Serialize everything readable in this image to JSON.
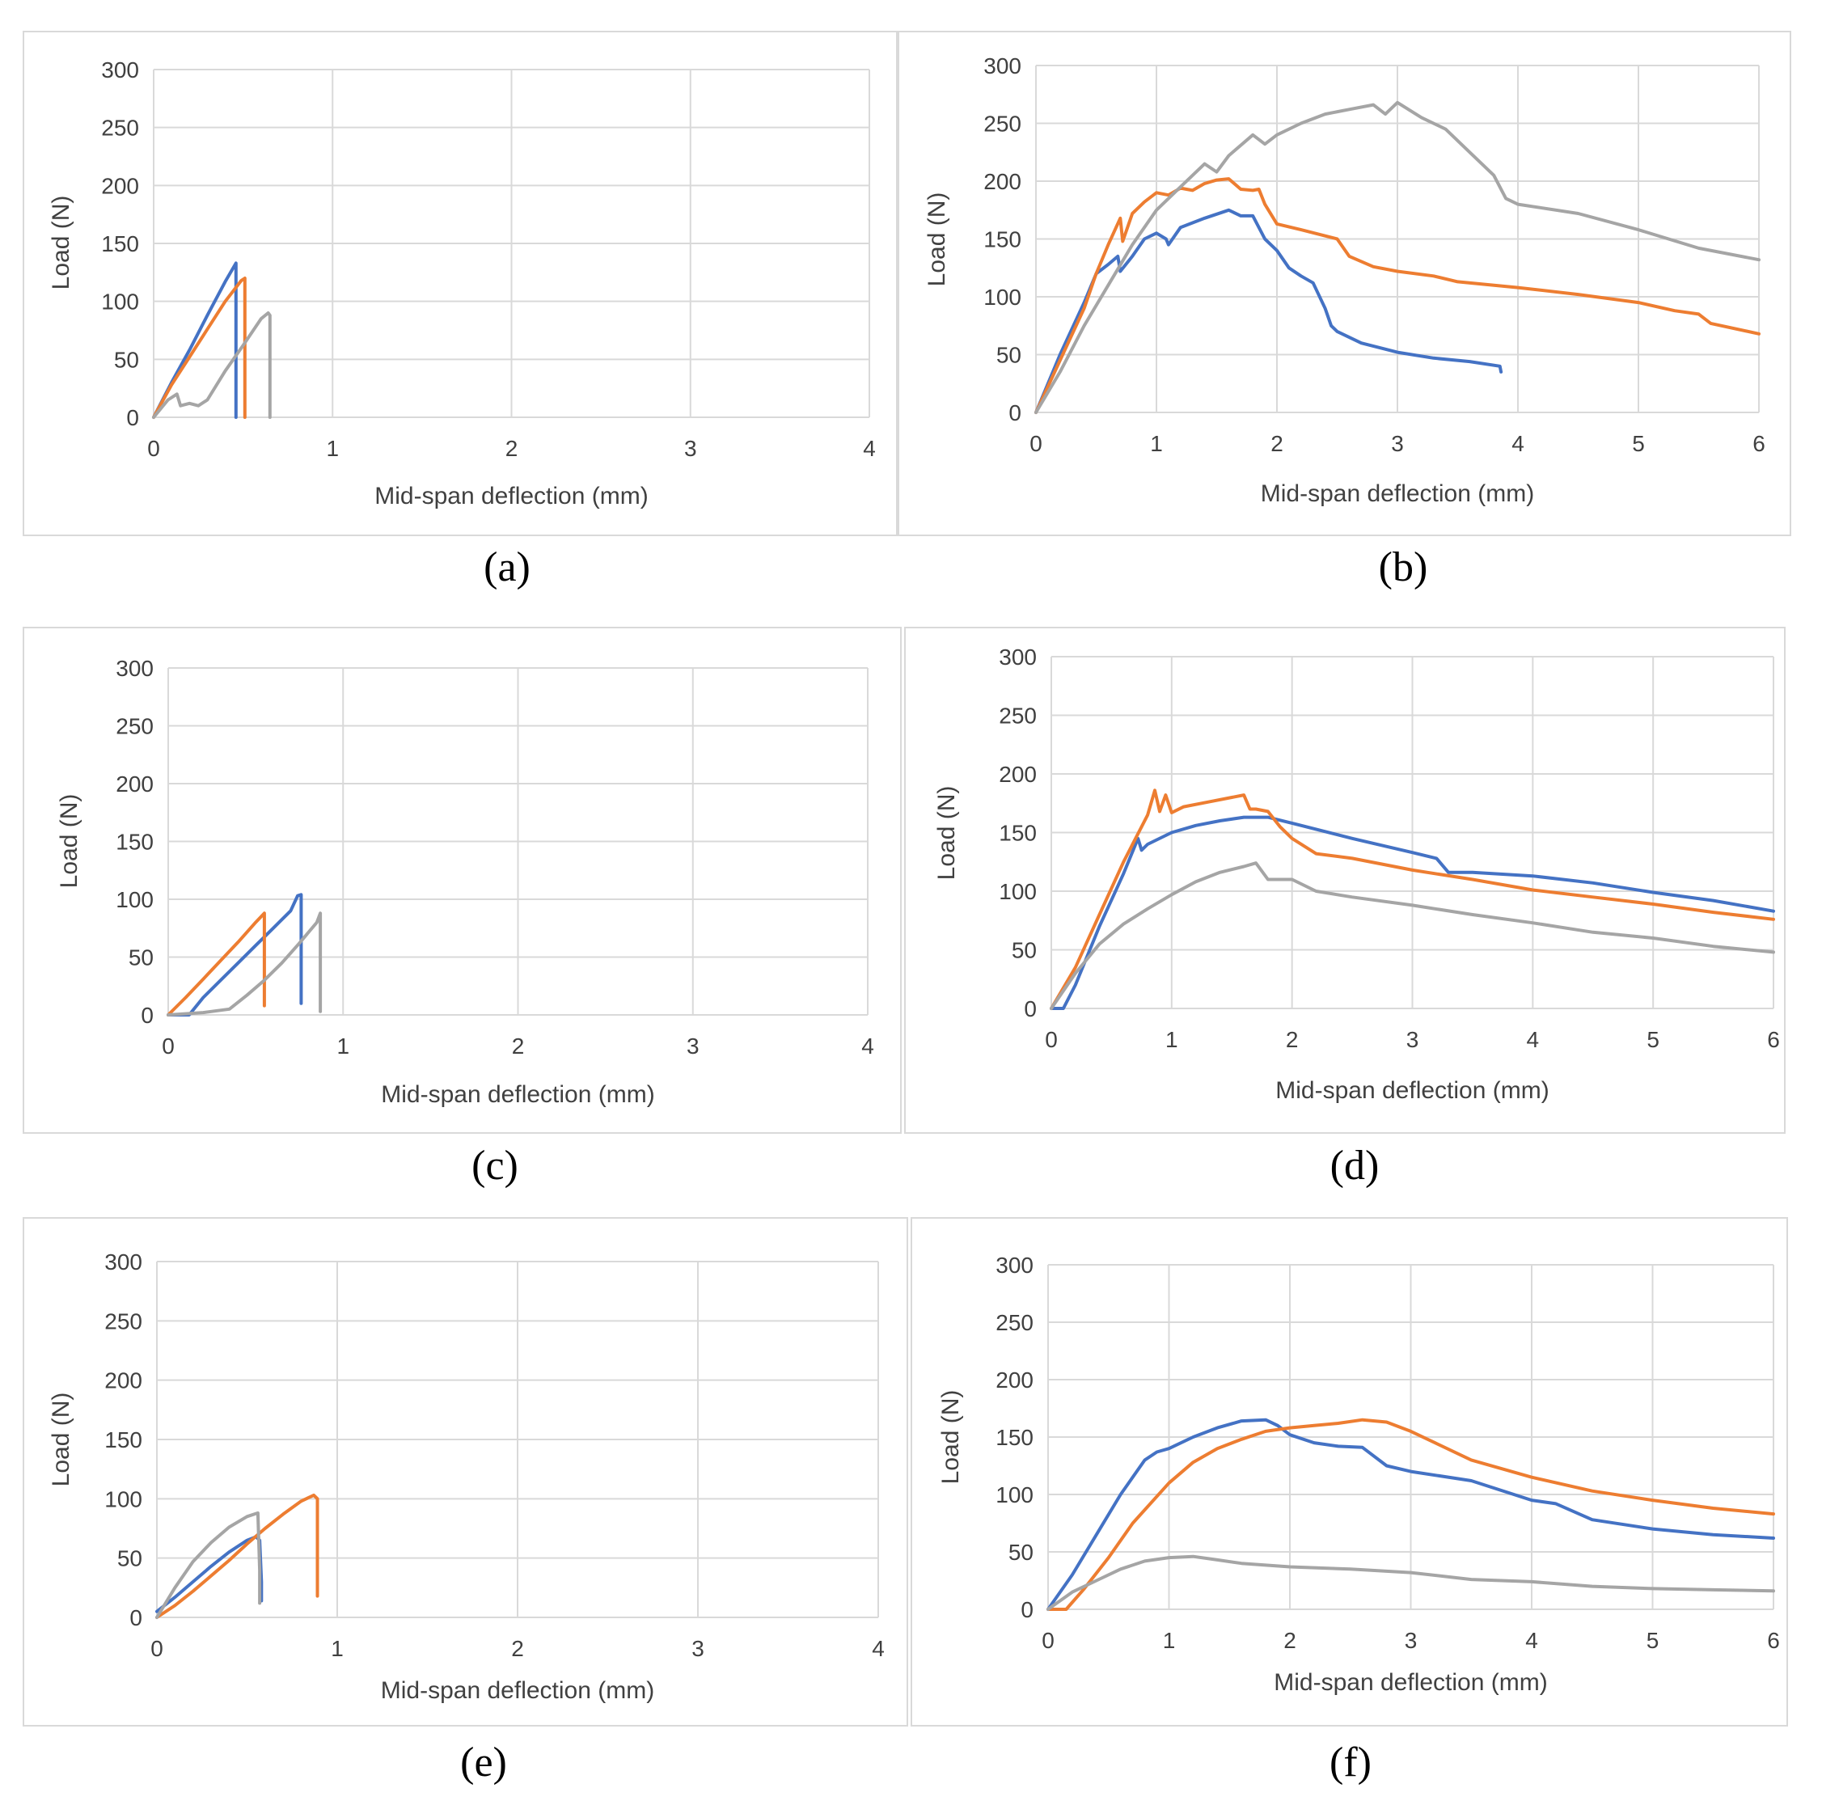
{
  "chart_data": [
    {
      "id": "a",
      "type": "line",
      "caption": "(a)",
      "xlabel": "Mid-span deflection (mm)",
      "ylabel": "Load (N)",
      "xlim": [
        0,
        4
      ],
      "ylim": [
        0,
        300
      ],
      "xticks": [
        "0",
        "1",
        "2",
        "3",
        "4"
      ],
      "yticks": [
        "0",
        "50",
        "100",
        "150",
        "200",
        "250",
        "300"
      ],
      "grid": true,
      "legend": "none",
      "series": [
        {
          "color": "#4472c4",
          "x": [
            0,
            0.1,
            0.2,
            0.3,
            0.4,
            0.46,
            0.46
          ],
          "y": [
            0,
            30,
            58,
            88,
            117,
            133,
            0
          ]
        },
        {
          "color": "#ed7d31",
          "x": [
            0,
            0.1,
            0.2,
            0.3,
            0.4,
            0.49,
            0.51,
            0.51
          ],
          "y": [
            0,
            28,
            52,
            76,
            100,
            118,
            120,
            0
          ]
        },
        {
          "color": "#a5a5a5",
          "x": [
            0,
            0.08,
            0.13,
            0.15,
            0.2,
            0.25,
            0.3,
            0.4,
            0.5,
            0.6,
            0.64,
            0.65,
            0.65
          ],
          "y": [
            0,
            15,
            20,
            10,
            12,
            10,
            15,
            40,
            62,
            85,
            90,
            88,
            0
          ]
        }
      ]
    },
    {
      "id": "b",
      "type": "line",
      "caption": "(b)",
      "xlabel": "Mid-span deflection (mm)",
      "ylabel": "Load (N)",
      "xlim": [
        0,
        6
      ],
      "ylim": [
        0,
        300
      ],
      "xticks": [
        "0",
        "1",
        "2",
        "3",
        "4",
        "5",
        "6"
      ],
      "yticks": [
        "0",
        "50",
        "100",
        "150",
        "200",
        "250",
        "300"
      ],
      "grid": true,
      "legend": "none",
      "series": [
        {
          "color": "#4472c4",
          "x": [
            0,
            0.2,
            0.4,
            0.5,
            0.6,
            0.68,
            0.7,
            0.8,
            0.9,
            1.0,
            1.08,
            1.1,
            1.2,
            1.4,
            1.6,
            1.7,
            1.8,
            1.9,
            2.0,
            2.1,
            2.2,
            2.3,
            2.4,
            2.45,
            2.5,
            2.7,
            3.0,
            3.3,
            3.6,
            3.85,
            3.86
          ],
          "y": [
            0,
            50,
            95,
            120,
            128,
            135,
            122,
            135,
            150,
            155,
            150,
            145,
            160,
            168,
            175,
            170,
            170,
            150,
            140,
            125,
            118,
            112,
            90,
            75,
            70,
            60,
            52,
            47,
            44,
            40,
            35
          ]
        },
        {
          "color": "#ed7d31",
          "x": [
            0,
            0.2,
            0.4,
            0.5,
            0.6,
            0.7,
            0.72,
            0.8,
            0.9,
            1.0,
            1.1,
            1.2,
            1.3,
            1.4,
            1.5,
            1.6,
            1.7,
            1.8,
            1.85,
            1.9,
            2.0,
            2.2,
            2.5,
            2.6,
            2.8,
            3.0,
            3.3,
            3.5,
            4.0,
            4.5,
            5.0,
            5.3,
            5.5,
            5.6,
            6.0
          ],
          "y": [
            0,
            45,
            90,
            120,
            145,
            168,
            148,
            172,
            182,
            190,
            188,
            194,
            192,
            198,
            201,
            202,
            193,
            192,
            193,
            180,
            163,
            158,
            150,
            135,
            126,
            122,
            118,
            113,
            108,
            102,
            95,
            88,
            85,
            77,
            68
          ]
        },
        {
          "color": "#a5a5a5",
          "x": [
            0,
            0.2,
            0.4,
            0.6,
            0.8,
            1.0,
            1.2,
            1.4,
            1.5,
            1.6,
            1.8,
            1.9,
            2.0,
            2.2,
            2.4,
            2.6,
            2.8,
            2.9,
            3.0,
            3.2,
            3.4,
            3.6,
            3.8,
            3.9,
            4.0,
            4.5,
            5.0,
            5.5,
            6.0
          ],
          "y": [
            0,
            35,
            75,
            110,
            145,
            175,
            195,
            215,
            208,
            222,
            240,
            232,
            240,
            250,
            258,
            262,
            266,
            258,
            268,
            255,
            245,
            225,
            205,
            185,
            180,
            172,
            158,
            142,
            132
          ]
        }
      ]
    },
    {
      "id": "c",
      "type": "line",
      "caption": "(c)",
      "xlabel": "Mid-span deflection (mm)",
      "ylabel": "Load (N)",
      "xlim": [
        0,
        4
      ],
      "ylim": [
        0,
        300
      ],
      "xticks": [
        "0",
        "1",
        "2",
        "3",
        "4"
      ],
      "yticks": [
        "0",
        "50",
        "100",
        "150",
        "200",
        "250",
        "300"
      ],
      "grid": true,
      "legend": "none",
      "series": [
        {
          "color": "#4472c4",
          "x": [
            0,
            0.12,
            0.2,
            0.3,
            0.4,
            0.5,
            0.6,
            0.7,
            0.74,
            0.76,
            0.76
          ],
          "y": [
            0,
            0,
            15,
            30,
            45,
            60,
            75,
            90,
            103,
            104,
            10
          ]
        },
        {
          "color": "#ed7d31",
          "x": [
            0,
            0.1,
            0.2,
            0.3,
            0.4,
            0.5,
            0.55,
            0.55
          ],
          "y": [
            0,
            15,
            31,
            47,
            63,
            80,
            88,
            8
          ]
        },
        {
          "color": "#a5a5a5",
          "x": [
            0,
            0.2,
            0.35,
            0.45,
            0.55,
            0.65,
            0.75,
            0.85,
            0.87,
            0.87
          ],
          "y": [
            0,
            2,
            5,
            17,
            30,
            45,
            62,
            80,
            88,
            3
          ]
        }
      ]
    },
    {
      "id": "d",
      "type": "line",
      "caption": "(d)",
      "xlabel": "Mid-span deflection (mm)",
      "ylabel": "Load (N)",
      "xlim": [
        0,
        6
      ],
      "ylim": [
        0,
        300
      ],
      "xticks": [
        "0",
        "1",
        "2",
        "3",
        "4",
        "5",
        "6"
      ],
      "yticks": [
        "0",
        "50",
        "100",
        "150",
        "200",
        "250",
        "300"
      ],
      "grid": true,
      "legend": "none",
      "series": [
        {
          "color": "#4472c4",
          "x": [
            0,
            0.1,
            0.2,
            0.4,
            0.6,
            0.72,
            0.75,
            0.8,
            1.0,
            1.2,
            1.4,
            1.6,
            1.8,
            2.0,
            2.5,
            3.0,
            3.2,
            3.3,
            3.5,
            4.0,
            4.5,
            5.0,
            5.5,
            6.0
          ],
          "y": [
            0,
            0,
            20,
            70,
            115,
            145,
            135,
            140,
            150,
            156,
            160,
            163,
            163,
            158,
            145,
            133,
            128,
            116,
            116,
            113,
            107,
            99,
            92,
            83
          ]
        },
        {
          "color": "#ed7d31",
          "x": [
            0,
            0.2,
            0.4,
            0.6,
            0.8,
            0.86,
            0.9,
            0.95,
            1.0,
            1.1,
            1.3,
            1.5,
            1.6,
            1.65,
            1.7,
            1.8,
            1.9,
            2.0,
            2.2,
            2.5,
            3.0,
            3.5,
            4.0,
            4.5,
            5.0,
            5.5,
            6.0
          ],
          "y": [
            0,
            35,
            80,
            125,
            165,
            186,
            168,
            182,
            167,
            172,
            176,
            180,
            182,
            170,
            170,
            168,
            155,
            145,
            132,
            128,
            118,
            110,
            101,
            95,
            89,
            82,
            76
          ]
        },
        {
          "color": "#a5a5a5",
          "x": [
            0,
            0.2,
            0.4,
            0.6,
            0.8,
            1.0,
            1.2,
            1.4,
            1.6,
            1.7,
            1.8,
            2.0,
            2.2,
            2.5,
            3.0,
            3.5,
            4.0,
            4.5,
            5.0,
            5.5,
            6.0
          ],
          "y": [
            0,
            30,
            55,
            72,
            85,
            97,
            108,
            116,
            121,
            124,
            110,
            110,
            100,
            95,
            88,
            80,
            73,
            65,
            60,
            53,
            48
          ]
        }
      ]
    },
    {
      "id": "e",
      "type": "line",
      "caption": "(e)",
      "xlabel": "Mid-span deflection (mm)",
      "ylabel": "Load (N)",
      "xlim": [
        0,
        4
      ],
      "ylim": [
        0,
        300
      ],
      "xticks": [
        "0",
        "1",
        "2",
        "3",
        "4"
      ],
      "yticks": [
        "0",
        "50",
        "100",
        "150",
        "200",
        "250",
        "300"
      ],
      "grid": true,
      "legend": "none",
      "series": [
        {
          "color": "#4472c4",
          "x": [
            0,
            0.1,
            0.2,
            0.3,
            0.4,
            0.5,
            0.55,
            0.57,
            0.58,
            0.58
          ],
          "y": [
            5,
            17,
            30,
            43,
            55,
            65,
            68,
            65,
            30,
            14
          ]
        },
        {
          "color": "#ed7d31",
          "x": [
            0,
            0.1,
            0.2,
            0.3,
            0.4,
            0.5,
            0.6,
            0.7,
            0.8,
            0.87,
            0.89,
            0.89
          ],
          "y": [
            0,
            10,
            22,
            35,
            48,
            62,
            75,
            87,
            98,
            103,
            100,
            18
          ]
        },
        {
          "color": "#a5a5a5",
          "x": [
            0,
            0.1,
            0.2,
            0.3,
            0.4,
            0.5,
            0.56,
            0.57,
            0.57
          ],
          "y": [
            0,
            25,
            47,
            63,
            76,
            85,
            88,
            40,
            12
          ]
        }
      ]
    },
    {
      "id": "f",
      "type": "line",
      "caption": "(f)",
      "xlabel": "Mid-span deflection (mm)",
      "ylabel": "Load (N)",
      "xlim": [
        0,
        6
      ],
      "ylim": [
        0,
        300
      ],
      "xticks": [
        "0",
        "1",
        "2",
        "3",
        "4",
        "5",
        "6"
      ],
      "yticks": [
        "0",
        "50",
        "100",
        "150",
        "200",
        "250",
        "300"
      ],
      "grid": true,
      "legend": "none",
      "series": [
        {
          "color": "#4472c4",
          "x": [
            0,
            0.2,
            0.4,
            0.6,
            0.8,
            0.9,
            1.0,
            1.2,
            1.4,
            1.6,
            1.8,
            1.9,
            2.0,
            2.2,
            2.4,
            2.6,
            2.8,
            3.0,
            3.5,
            4.0,
            4.2,
            4.5,
            5.0,
            5.5,
            6.0
          ],
          "y": [
            0,
            30,
            65,
            100,
            130,
            137,
            140,
            150,
            158,
            164,
            165,
            160,
            152,
            145,
            142,
            141,
            125,
            120,
            112,
            95,
            92,
            78,
            70,
            65,
            62
          ]
        },
        {
          "color": "#ed7d31",
          "x": [
            0,
            0.15,
            0.3,
            0.5,
            0.7,
            1.0,
            1.2,
            1.4,
            1.6,
            1.8,
            2.0,
            2.2,
            2.4,
            2.6,
            2.8,
            3.0,
            3.2,
            3.5,
            4.0,
            4.5,
            5.0,
            5.5,
            6.0
          ],
          "y": [
            0,
            0,
            18,
            45,
            75,
            110,
            128,
            140,
            148,
            155,
            158,
            160,
            162,
            165,
            163,
            155,
            145,
            130,
            115,
            103,
            95,
            88,
            83
          ]
        },
        {
          "color": "#a5a5a5",
          "x": [
            0,
            0.2,
            0.4,
            0.6,
            0.8,
            1.0,
            1.2,
            1.4,
            1.6,
            2.0,
            2.5,
            3.0,
            3.5,
            4.0,
            4.5,
            5.0,
            5.5,
            6.0
          ],
          "y": [
            0,
            15,
            25,
            35,
            42,
            45,
            46,
            43,
            40,
            37,
            35,
            32,
            26,
            24,
            20,
            18,
            17,
            16
          ]
        }
      ]
    }
  ]
}
